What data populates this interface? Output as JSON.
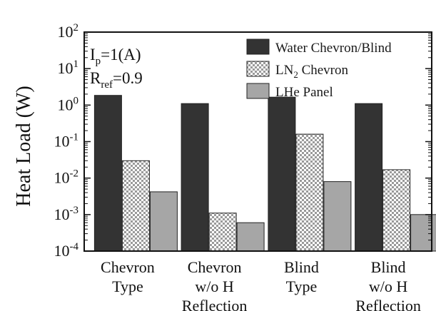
{
  "chart_data": {
    "type": "bar",
    "scale": "log",
    "ylabel": "Heat Load (W)",
    "ylim": [
      0.0001,
      100
    ],
    "yticks": [
      {
        "value": 100,
        "base": "10",
        "exp": "2"
      },
      {
        "value": 10,
        "base": "10",
        "exp": "1"
      },
      {
        "value": 1,
        "base": "10",
        "exp": "0"
      },
      {
        "value": 0.1,
        "base": "10",
        "exp": "-1"
      },
      {
        "value": 0.01,
        "base": "10",
        "exp": "-2"
      },
      {
        "value": 0.001,
        "base": "10",
        "exp": "-3"
      },
      {
        "value": 0.0001,
        "base": "10",
        "exp": "-4"
      }
    ],
    "categories": [
      [
        "Chevron",
        "Type"
      ],
      [
        "Chevron",
        "w/o H",
        "Reflection"
      ],
      [
        "Blind",
        "Type"
      ],
      [
        "Blind",
        "w/o H",
        "Reflection"
      ]
    ],
    "series": [
      {
        "name": "Water Chevron/Blind",
        "name_base": "Water Chevron/Blind",
        "name_sub": "",
        "name_rest": "",
        "fill": "#333333",
        "pattern": "solid",
        "values": [
          1.85,
          1.1,
          1.65,
          1.1
        ]
      },
      {
        "name": "LN2 Chevron",
        "name_base": "LN",
        "name_sub": "2",
        "name_rest": " Chevron",
        "fill": "#ffffff",
        "pattern": "checker",
        "values": [
          0.03,
          0.0011,
          0.16,
          0.017
        ]
      },
      {
        "name": "LHe Panel",
        "name_base": "LHe Panel",
        "name_sub": "",
        "name_rest": "",
        "fill": "#a6a6a6",
        "pattern": "solid",
        "values": [
          0.0042,
          0.0006,
          0.008,
          0.001
        ]
      }
    ],
    "legend_position": "top-right",
    "grid": false,
    "annotations": [
      {
        "base": "I",
        "sub": "p",
        "rest": "=1(A)"
      },
      {
        "base": "R",
        "sub": "ref",
        "rest": "=0.9"
      }
    ]
  }
}
